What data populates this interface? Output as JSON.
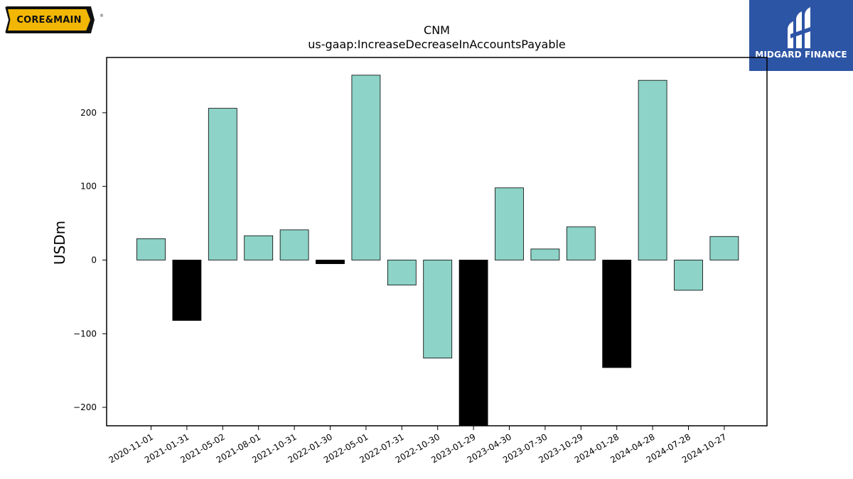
{
  "logos": {
    "left_text": "CORE&MAIN",
    "left_mark": "®",
    "right_text": "MIDGARD FINANCE",
    "right_icon": "midgard-monogram-icon"
  },
  "chart_data": {
    "type": "bar",
    "title": "CNM",
    "subtitle": "us-gaap:IncreaseDecreaseInAccountsPayable",
    "xlabel": "",
    "ylabel": "USDm",
    "ylim": [
      -225,
      275
    ],
    "yticks": [
      -200,
      -100,
      0,
      100,
      200
    ],
    "yticklabels": [
      "−200",
      "−100",
      "0",
      "100",
      "200"
    ],
    "grid": false,
    "legend": "none",
    "categories": [
      "2020-11-01",
      "2021-01-31",
      "2021-05-02",
      "2021-08-01",
      "2021-10-31",
      "2022-01-30",
      "2022-05-01",
      "2022-07-31",
      "2022-10-30",
      "2023-01-29",
      "2023-04-30",
      "2023-07-30",
      "2023-10-29",
      "2024-01-28",
      "2024-04-28",
      "2024-07-28",
      "2024-10-27"
    ],
    "values": [
      29,
      -82,
      206,
      33,
      41,
      -5,
      251,
      -34,
      -133,
      -235,
      98,
      15,
      45,
      -146,
      244,
      -41,
      32
    ],
    "bar_colors": [
      "#8dd3c7",
      "#000000",
      "#8dd3c7",
      "#8dd3c7",
      "#8dd3c7",
      "#000000",
      "#8dd3c7",
      "#8dd3c7",
      "#8dd3c7",
      "#000000",
      "#8dd3c7",
      "#8dd3c7",
      "#8dd3c7",
      "#000000",
      "#8dd3c7",
      "#8dd3c7",
      "#8dd3c7"
    ]
  }
}
